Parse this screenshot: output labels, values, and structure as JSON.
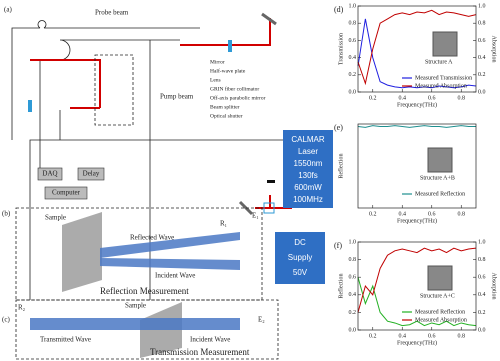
{
  "diagram": {
    "panel_a": "(a)",
    "probe_beam": "Probe beam",
    "pump_beam": "Pump beam",
    "legend": [
      "Mirror",
      "Half-wave plate",
      "Lens",
      "GRIN fiber collimator",
      "Off-axis parabolic mirror",
      "Beam splitter",
      "Optical shutter"
    ],
    "laser": [
      "CALMAR",
      "Laser",
      "1550nm",
      "130fs",
      "600mW",
      "100MHz"
    ],
    "daq": "DAQ",
    "delay": "Delay",
    "computer": "Computer",
    "dc_supply": [
      "DC",
      "Supply",
      "50V"
    ],
    "reflection": {
      "panel": "(b)",
      "sample": "Sample",
      "reflected_wave": "Reflected Wave",
      "receiver": "R₁",
      "emitter": "E₁",
      "incident_wave": "Incident Wave",
      "title": "Reflection Measurement"
    },
    "transmission": {
      "panel": "(c)",
      "receiver": "R₂",
      "sample": "Sample",
      "emitter": "E₂",
      "transmitted_wave": "Transmitted Wave",
      "incident_wave": "Incident Wave",
      "title": "Transmission Measurement"
    }
  },
  "chart_data": [
    {
      "type": "line",
      "panel": "(d)",
      "structure": "Structure A",
      "xlabel": "Frequency(THz)",
      "ylabel": "Transmission",
      "y2label": "Absorption",
      "x": [
        0.1,
        0.15,
        0.2,
        0.25,
        0.3,
        0.35,
        0.4,
        0.45,
        0.5,
        0.55,
        0.6,
        0.65,
        0.7,
        0.75,
        0.8,
        0.85,
        0.9
      ],
      "xlim": [
        0.1,
        0.9
      ],
      "xticks": [
        0.2,
        0.4,
        0.6,
        0.8
      ],
      "ylim": [
        0,
        1.0
      ],
      "yticks": [
        {
          "value": 0,
          "label": "0.0"
        },
        0.2,
        0.4,
        0.6,
        0.8,
        {
          "value": 1.0,
          "label": "1.0"
        }
      ],
      "y2lim": [
        0,
        1.0
      ],
      "y2ticks": [
        {
          "value": 0,
          "label": "0.0"
        },
        0.2,
        0.4,
        0.6,
        0.8,
        {
          "value": 1.0,
          "label": "1.0"
        }
      ],
      "series": [
        {
          "name": "Measured Transmission",
          "color": "#1f1fe0",
          "values": [
            0.3,
            0.85,
            0.4,
            0.12,
            0.08,
            0.06,
            0.05,
            0.06,
            0.05,
            0.06,
            0.05,
            0.07,
            0.06,
            0.05,
            0.06,
            0.08,
            0.07
          ]
        },
        {
          "name": "Measured Absorption",
          "color": "#c00000",
          "axis": "y2",
          "values": [
            0.35,
            0.1,
            0.5,
            0.8,
            0.85,
            0.9,
            0.92,
            0.9,
            0.93,
            0.92,
            0.95,
            0.9,
            0.93,
            0.92,
            0.9,
            0.88,
            0.9
          ]
        }
      ]
    },
    {
      "type": "line",
      "panel": "(e)",
      "structure": "Structure A+B",
      "xlabel": "Frequency(THz)",
      "ylabel": "Reflection",
      "x": [
        0.1,
        0.15,
        0.2,
        0.25,
        0.3,
        0.35,
        0.4,
        0.45,
        0.5,
        0.55,
        0.6,
        0.65,
        0.7,
        0.75,
        0.8,
        0.85,
        0.9
      ],
      "xlim": [
        0.1,
        0.9
      ],
      "xticks": [
        0.2,
        0.4,
        0.6,
        0.8
      ],
      "ylim": [
        0,
        1.0
      ],
      "series": [
        {
          "name": "Measured Reflection",
          "color": "#1f8f8f",
          "values": [
            0.97,
            0.96,
            0.98,
            0.97,
            0.97,
            0.98,
            0.97,
            0.96,
            0.97,
            0.98,
            0.97,
            0.97,
            0.96,
            0.97,
            0.98,
            0.97,
            0.97
          ]
        }
      ]
    },
    {
      "type": "line",
      "panel": "(f)",
      "structure": "Structure A+C",
      "xlabel": "Frequency(THz)",
      "ylabel": "Reflection",
      "y2label": "Absorption",
      "x": [
        0.1,
        0.15,
        0.2,
        0.25,
        0.3,
        0.35,
        0.4,
        0.45,
        0.5,
        0.55,
        0.6,
        0.65,
        0.7,
        0.75,
        0.8,
        0.85,
        0.9
      ],
      "xlim": [
        0.1,
        0.9
      ],
      "xticks": [
        0.2,
        0.4,
        0.6,
        0.8
      ],
      "ylim": [
        0,
        1.0
      ],
      "yticks": [
        {
          "value": 0,
          "label": "0.0"
        },
        0.2,
        0.4,
        0.6,
        0.8,
        {
          "value": 1.0,
          "label": "1.0"
        }
      ],
      "y2lim": [
        0,
        1.0
      ],
      "y2ticks": [
        {
          "value": 0,
          "label": "0.0"
        },
        0.2,
        0.4,
        0.6,
        0.8,
        {
          "value": 1.0,
          "label": "1.0"
        }
      ],
      "series": [
        {
          "name": "Measured Reflection",
          "color": "#22b022",
          "values": [
            0.6,
            0.3,
            0.5,
            0.2,
            0.1,
            0.08,
            0.05,
            0.06,
            0.1,
            0.05,
            0.08,
            0.06,
            0.1,
            0.05,
            0.08,
            0.06,
            0.05
          ]
        },
        {
          "name": "Measured Absorption",
          "color": "#c00000",
          "axis": "y2",
          "values": [
            0.2,
            0.5,
            0.4,
            0.7,
            0.85,
            0.9,
            0.92,
            0.9,
            0.88,
            0.93,
            0.9,
            0.92,
            0.88,
            0.93,
            0.9,
            0.92,
            0.93
          ]
        }
      ]
    }
  ]
}
